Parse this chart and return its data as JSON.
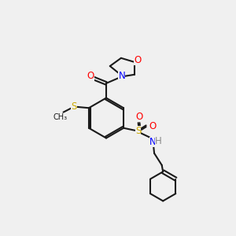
{
  "bg_color": "#f0f0f0",
  "bond_color": "#1a1a1a",
  "bond_lw": 1.5,
  "atom_colors": {
    "O": "#ff0000",
    "N": "#0000ff",
    "S": "#ccaa00",
    "S_sulfonamide": "#ccaa00",
    "H": "#aaaaaa",
    "C": "#1a1a1a"
  },
  "font_size": 8.5,
  "font_size_small": 7.5
}
